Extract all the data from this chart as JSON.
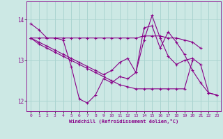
{
  "xlabel": "Windchill (Refroidissement éolien,°C)",
  "background_color": "#cce8e4",
  "grid_color": "#aad4d0",
  "line_color": "#880088",
  "xlim": [
    -0.5,
    23.5
  ],
  "ylim": [
    11.75,
    14.45
  ],
  "yticks": [
    12,
    13,
    14
  ],
  "xticks": [
    0,
    1,
    2,
    3,
    4,
    5,
    6,
    7,
    8,
    9,
    10,
    11,
    12,
    13,
    14,
    15,
    16,
    17,
    18,
    19,
    20,
    21,
    22,
    23
  ],
  "series": [
    [
      13.9,
      13.75,
      13.55,
      13.55,
      13.5,
      12.85,
      12.05,
      11.95,
      12.15,
      12.55,
      12.45,
      12.6,
      12.55,
      12.7,
      13.5,
      14.1,
      13.55,
      13.1,
      12.9,
      13.0,
      13.05,
      12.9,
      12.2,
      12.15
    ],
    [
      13.55,
      13.55,
      13.55,
      13.55,
      13.55,
      13.55,
      13.55,
      13.55,
      13.55,
      13.55,
      13.55,
      13.55,
      13.55,
      13.55,
      13.6,
      13.6,
      13.6,
      13.55,
      13.55,
      13.5,
      13.45,
      13.3,
      null,
      null
    ],
    [
      13.55,
      13.4,
      13.3,
      13.2,
      13.1,
      13.0,
      12.9,
      12.8,
      12.7,
      12.6,
      12.5,
      12.4,
      12.35,
      12.3,
      12.3,
      12.3,
      12.3,
      12.3,
      12.3,
      12.3,
      13.0,
      null,
      null,
      null
    ],
    [
      13.55,
      13.45,
      13.35,
      13.25,
      13.15,
      13.05,
      12.95,
      12.85,
      12.75,
      12.65,
      12.75,
      12.95,
      13.05,
      12.7,
      13.8,
      13.85,
      13.3,
      13.7,
      13.45,
      13.15,
      12.75,
      12.45,
      12.2,
      12.15
    ]
  ]
}
